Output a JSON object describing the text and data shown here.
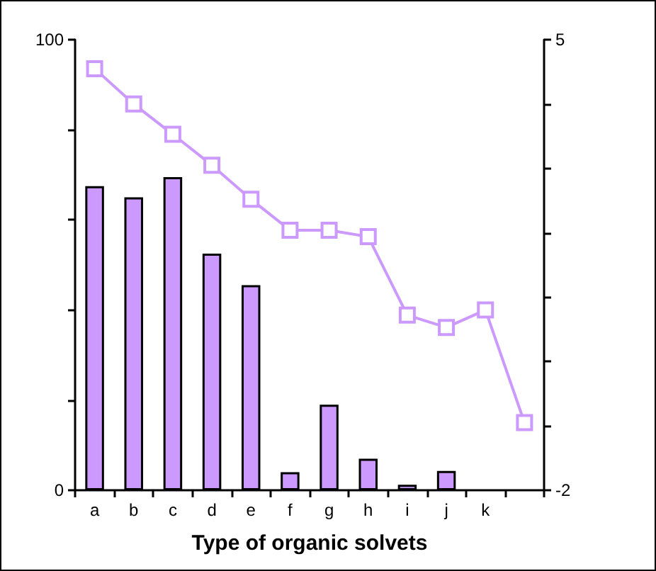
{
  "chart_data": {
    "type": "bar",
    "xlabel": "Type of organic solvets",
    "categories": [
      "a",
      "b",
      "c",
      "d",
      "e",
      "f",
      "g",
      "h",
      "i",
      "j",
      "k",
      null
    ],
    "series": [
      {
        "color": "#cc99ff",
        "values": [
          67.5,
          65,
          69.5,
          52.5,
          45.5,
          4,
          19,
          7,
          1.2,
          4.3,
          null,
          null
        ]
      },
      {
        "type": "line",
        "axis": "y2",
        "color": "#cc99ff",
        "values": [
          4.55,
          4.0,
          3.53,
          3.05,
          2.52,
          2.04,
          2.04,
          1.94,
          0.72,
          0.53,
          0.8,
          -0.95
        ]
      }
    ],
    "ylim": [
      0,
      100
    ],
    "yticks": [
      0,
      {
        "value": 20,
        "label": null
      },
      {
        "value": 40,
        "label": null
      },
      {
        "value": 60,
        "label": null
      },
      {
        "value": 80,
        "label": null
      },
      100
    ],
    "y2lim": [
      -2,
      5
    ],
    "y2ticks": [
      -2,
      {
        "value": -1,
        "label": null
      },
      {
        "value": 0,
        "label": null
      },
      {
        "value": 1,
        "label": null
      },
      {
        "value": 2,
        "label": null
      },
      {
        "value": 3,
        "label": null
      },
      {
        "value": 4,
        "label": null
      },
      5
    ],
    "marker": "square",
    "grid": false
  }
}
